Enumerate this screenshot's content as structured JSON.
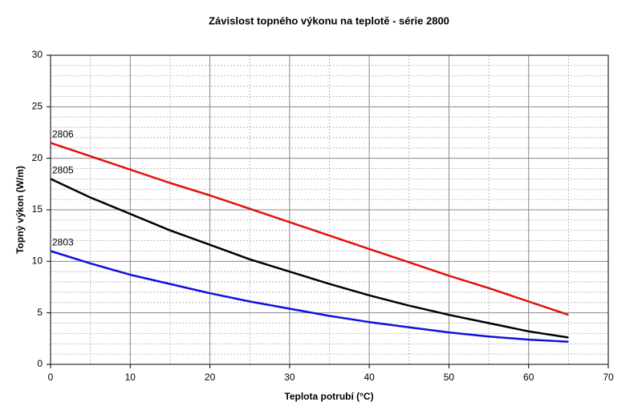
{
  "chart_data": {
    "type": "line",
    "title": "Závislost topného výkonu na teplotě - série 2800",
    "x_label": "Teplota potrubí (°C)",
    "y_label": "Topný výkon (W/m)",
    "x": [
      0,
      5,
      10,
      15,
      20,
      25,
      30,
      35,
      40,
      45,
      50,
      55,
      60,
      65
    ],
    "series": [
      {
        "name": "2806",
        "color": "#e01010",
        "values": [
          21.5,
          20.2,
          18.9,
          17.6,
          16.4,
          15.1,
          13.8,
          12.5,
          11.2,
          9.9,
          8.6,
          7.4,
          6.1,
          4.8
        ]
      },
      {
        "name": "2805",
        "color": "#000000",
        "values": [
          18.0,
          16.2,
          14.6,
          13.0,
          11.6,
          10.2,
          9.0,
          7.8,
          6.7,
          5.7,
          4.8,
          4.0,
          3.2,
          2.6
        ]
      },
      {
        "name": "2803",
        "color": "#1010e0",
        "values": [
          11.0,
          9.8,
          8.7,
          7.8,
          6.9,
          6.1,
          5.4,
          4.7,
          4.1,
          3.6,
          3.1,
          2.7,
          2.4,
          2.2
        ]
      }
    ],
    "xlim": [
      0,
      70
    ],
    "xticks": [
      0,
      10,
      20,
      30,
      40,
      50,
      60,
      70
    ],
    "ylim": [
      0,
      30
    ],
    "yticks": [
      0,
      5,
      10,
      15,
      20,
      25,
      30
    ],
    "grid": true
  }
}
